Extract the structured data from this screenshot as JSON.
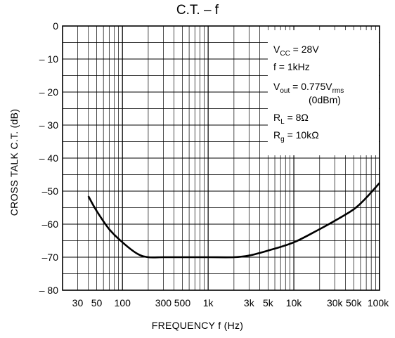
{
  "chart_data": {
    "type": "line",
    "title": "C.T.  –  f",
    "xlabel": "FREQUENCY    f    (Hz)",
    "ylabel": "CROSS TALK   C.T.   (dB)",
    "x_scale": "log",
    "xlim": [
      20,
      100000
    ],
    "ylim": [
      -80,
      0
    ],
    "grid": true,
    "x_tick_labels": [
      {
        "value": 30,
        "label": "30"
      },
      {
        "value": 50,
        "label": "50"
      },
      {
        "value": 100,
        "label": "100"
      },
      {
        "value": 300,
        "label": "300"
      },
      {
        "value": 500,
        "label": "500"
      },
      {
        "value": 1000,
        "label": "1k"
      },
      {
        "value": 3000,
        "label": "3k"
      },
      {
        "value": 5000,
        "label": "5k"
      },
      {
        "value": 10000,
        "label": "10k"
      },
      {
        "value": 30000,
        "label": "30k"
      },
      {
        "value": 50000,
        "label": "50k"
      },
      {
        "value": 100000,
        "label": "100k"
      }
    ],
    "y_tick_labels": [
      {
        "value": 0,
        "label": "0"
      },
      {
        "value": -10,
        "label": "– 10"
      },
      {
        "value": -20,
        "label": "– 20"
      },
      {
        "value": -30,
        "label": "– 30"
      },
      {
        "value": -40,
        "label": "– 40"
      },
      {
        "value": -50,
        "label": "–50"
      },
      {
        "value": -60,
        "label": "–60"
      },
      {
        "value": -70,
        "label": "–70"
      },
      {
        "value": -80,
        "label": "– 80"
      }
    ],
    "series": [
      {
        "color": "#000000",
        "x": [
          40,
          50,
          70,
          100,
          150,
          200,
          300,
          500,
          1000,
          2000,
          3000,
          5000,
          10000,
          20000,
          30000,
          50000,
          70000,
          100000
        ],
        "y": [
          -51.5,
          -56,
          -61.5,
          -65.5,
          -69,
          -70,
          -70,
          -70,
          -70,
          -70,
          -69.5,
          -68,
          -65.5,
          -61.5,
          -59,
          -55.5,
          -52,
          -47.5
        ]
      }
    ],
    "conditions": {
      "vcc": {
        "main": "V",
        "sub": "CC",
        "rest": " = 28V"
      },
      "freq": "f = 1kHz",
      "vout": {
        "main": "V",
        "sub": "out",
        "rest": " = 0.775V",
        "sub2": "rms"
      },
      "dbm": "(0dBm)",
      "rl": {
        "main": "R",
        "sub": "L",
        "rest": " = 8Ω"
      },
      "rg": {
        "main": "R",
        "sub": "g",
        "rest": " = 10kΩ"
      }
    }
  }
}
